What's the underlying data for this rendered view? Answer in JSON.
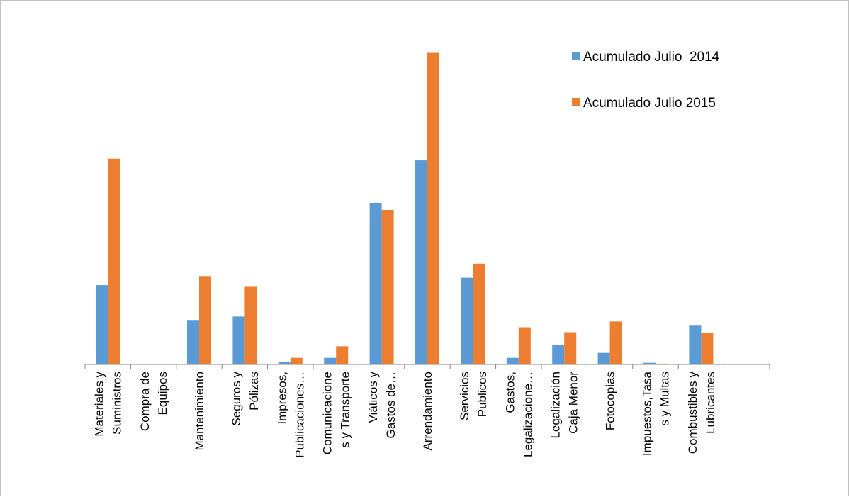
{
  "chart_data": {
    "type": "bar",
    "title": "",
    "xlabel": "",
    "ylabel": "",
    "ylim": [
      0,
      380
    ],
    "grid": false,
    "legend_position": "top-right",
    "categories": [
      [
        "Materiales  y",
        "Suministros"
      ],
      [
        "Compra de",
        "Equipos"
      ],
      [
        "Mantenimiento"
      ],
      [
        "Seguros y",
        "Pólizas"
      ],
      [
        "Impresos,",
        "Publicaciones…"
      ],
      [
        "Comunicacione",
        "s y Transporte"
      ],
      [
        "Viáticos y",
        "Gastos de…"
      ],
      [
        "Arrendamiento"
      ],
      [
        "Servicios",
        "Publicos"
      ],
      [
        "Gastos,",
        "Legalizacione…"
      ],
      [
        "Legalización",
        "Caja Menor"
      ],
      [
        "Fotocopias"
      ],
      [
        "Impuestos,Tasa",
        "s y Multas"
      ],
      [
        "Combustibles y",
        "Lubricantes"
      ],
      [
        ""
      ]
    ],
    "series": [
      {
        "name": "Acumulado Julio  2014",
        "color": "#5b9bd5",
        "values": [
          96,
          0,
          53,
          58,
          3,
          8,
          195,
          247,
          105,
          8,
          24,
          14,
          2,
          47,
          0
        ]
      },
      {
        "name": "Acumulado Julio 2015",
        "color": "#ed7d31",
        "values": [
          249,
          0,
          107,
          94,
          8,
          22,
          187,
          377,
          122,
          45,
          39,
          52,
          1,
          38,
          0
        ]
      }
    ]
  }
}
